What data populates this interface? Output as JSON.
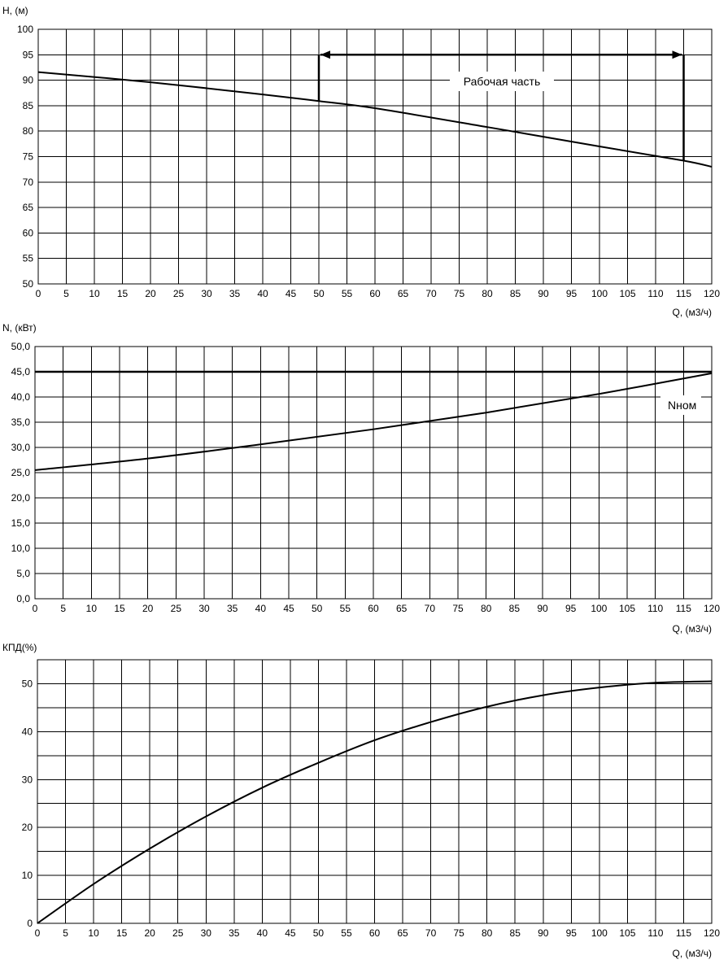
{
  "chart_data": [
    {
      "type": "line",
      "ylabel": "H, (м)",
      "xlabel": "Q, (м3/ч)",
      "xlim": [
        0,
        120
      ],
      "ylim": [
        50,
        100
      ],
      "x_ticks": [
        "0",
        "5",
        "10",
        "15",
        "20",
        "25",
        "30",
        "35",
        "40",
        "45",
        "50",
        "55",
        "60",
        "65",
        "70",
        "75",
        "80",
        "85",
        "90",
        "95",
        "100",
        "105",
        "110",
        "115",
        "120"
      ],
      "y_ticks": [
        "100",
        "95",
        "90",
        "85",
        "80",
        "75",
        "70",
        "65",
        "60",
        "55",
        "50"
      ],
      "grid": true,
      "series": [
        {
          "x": [
            0,
            20,
            40,
            50,
            60,
            80,
            100,
            115,
            120
          ],
          "y": [
            91.6,
            89.6,
            87.2,
            85.9,
            84.5,
            80.8,
            77.0,
            74.2,
            73.0
          ]
        }
      ],
      "working_range": {
        "from": 50,
        "to": 115,
        "level": 95,
        "label": "Рабочая часть"
      }
    },
    {
      "type": "line",
      "ylabel": "N, (кВт)",
      "xlabel": "Q, (м3/ч)",
      "xlim": [
        0,
        120
      ],
      "ylim": [
        0,
        50
      ],
      "x_ticks": [
        "0",
        "5",
        "10",
        "15",
        "20",
        "25",
        "30",
        "35",
        "40",
        "45",
        "50",
        "55",
        "60",
        "65",
        "70",
        "75",
        "80",
        "85",
        "90",
        "95",
        "100",
        "105",
        "110",
        "115",
        "120"
      ],
      "y_ticks": [
        "50,0",
        "45,0",
        "40,0",
        "35,0",
        "30,0",
        "25,0",
        "20,0",
        "15,0",
        "10,0",
        "5,0",
        "0,0"
      ],
      "grid": true,
      "series": [
        {
          "x": [
            0,
            20,
            40,
            60,
            80,
            100,
            120
          ],
          "y": [
            25.5,
            27.8,
            30.6,
            33.6,
            36.9,
            40.6,
            44.7
          ]
        }
      ],
      "reference_line": {
        "y": 45,
        "label": "Nном"
      }
    },
    {
      "type": "line",
      "ylabel": "КПД(%)",
      "xlabel": "Q, (м3/ч)",
      "xlim": [
        0,
        120
      ],
      "ylim": [
        0,
        55
      ],
      "x_ticks": [
        "0",
        "5",
        "10",
        "15",
        "20",
        "25",
        "30",
        "35",
        "40",
        "45",
        "50",
        "55",
        "60",
        "65",
        "70",
        "75",
        "80",
        "85",
        "90",
        "95",
        "100",
        "105",
        "110",
        "115",
        "120"
      ],
      "y_ticks": [
        "50",
        "40",
        "30",
        "20",
        "10",
        "0"
      ],
      "grid": true,
      "series": [
        {
          "x": [
            0,
            10,
            20,
            30,
            40,
            50,
            60,
            70,
            80,
            90,
            100,
            110,
            120
          ],
          "y": [
            0,
            8.2,
            15.6,
            22.3,
            28.3,
            33.5,
            38.2,
            42.0,
            45.2,
            47.6,
            49.2,
            50.2,
            50.5
          ]
        }
      ]
    }
  ]
}
